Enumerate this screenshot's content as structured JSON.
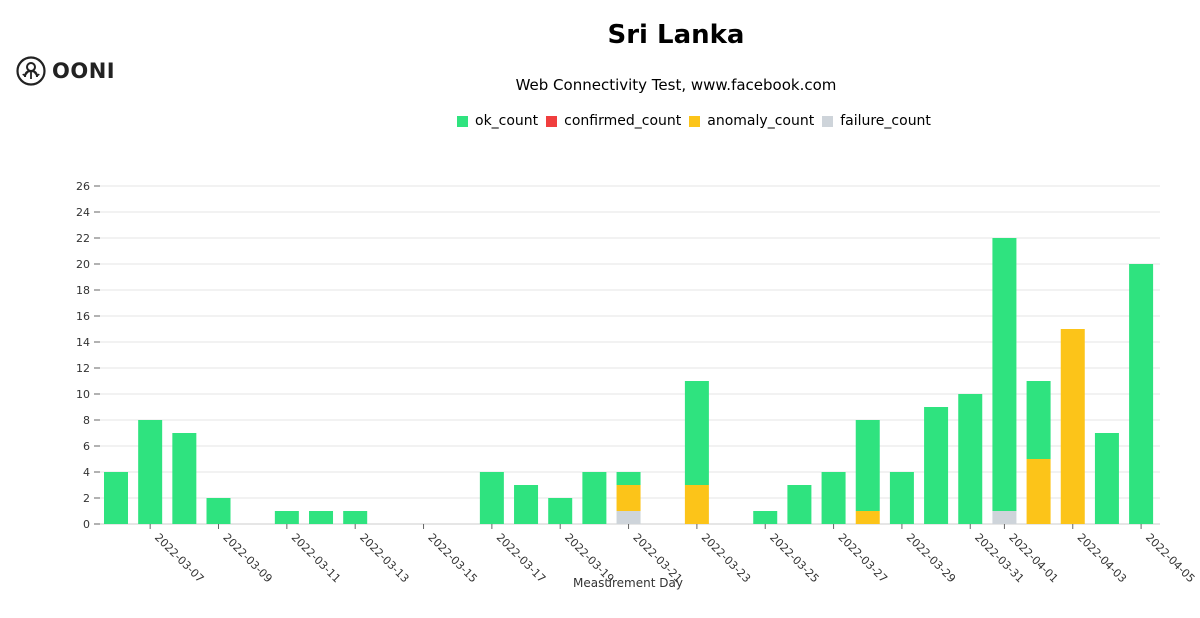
{
  "logo": {
    "text": "OONI"
  },
  "chart_data": {
    "type": "bar",
    "stacked": true,
    "title": "Sri Lanka",
    "subtitle": "Web Connectivity Test, www.facebook.com",
    "xlabel": "Measurement Day",
    "ylabel": "",
    "ylim": [
      0,
      26
    ],
    "yticks": [
      0,
      2,
      4,
      6,
      8,
      10,
      12,
      14,
      16,
      18,
      20,
      22,
      24,
      26
    ],
    "grid": true,
    "legend_position": "top-center",
    "categories": [
      "2022-03-06",
      "2022-03-07",
      "2022-03-08",
      "2022-03-09",
      "2022-03-10",
      "2022-03-11",
      "2022-03-12",
      "2022-03-13",
      "2022-03-14",
      "2022-03-15",
      "2022-03-16",
      "2022-03-17",
      "2022-03-18",
      "2022-03-19",
      "2022-03-20",
      "2022-03-21",
      "2022-03-22",
      "2022-03-23",
      "2022-03-24",
      "2022-03-25",
      "2022-03-26",
      "2022-03-27",
      "2022-03-28",
      "2022-03-29",
      "2022-03-30",
      "2022-03-31",
      "2022-04-01",
      "2022-04-02",
      "2022-04-03",
      "2022-04-04",
      "2022-04-05"
    ],
    "tick_labels": [
      "2022-03-07",
      "2022-03-09",
      "2022-03-11",
      "2022-03-13",
      "2022-03-15",
      "2022-03-17",
      "2022-03-19",
      "2022-03-21",
      "2022-03-23",
      "2022-03-25",
      "2022-03-27",
      "2022-03-29",
      "2022-03-31",
      "2022-04-01",
      "2022-04-03",
      "2022-04-05"
    ],
    "series": [
      {
        "name": "failure_count",
        "color": "#ced4da",
        "values": [
          0,
          0,
          0,
          0,
          0,
          0,
          0,
          0,
          0,
          0,
          0,
          0,
          0,
          0,
          0,
          1,
          0,
          0,
          0,
          0,
          0,
          0,
          0,
          0,
          0,
          0,
          1,
          0,
          0,
          0,
          0
        ]
      },
      {
        "name": "anomaly_count",
        "color": "#fcc419",
        "values": [
          0,
          0,
          0,
          0,
          0,
          0,
          0,
          0,
          0,
          0,
          0,
          0,
          0,
          0,
          0,
          2,
          0,
          3,
          0,
          0,
          0,
          0,
          1,
          0,
          0,
          0,
          0,
          5,
          15,
          0,
          0
        ]
      },
      {
        "name": "confirmed_count",
        "color": "#f03e3e",
        "values": [
          0,
          0,
          0,
          0,
          0,
          0,
          0,
          0,
          0,
          0,
          0,
          0,
          0,
          0,
          0,
          0,
          0,
          0,
          0,
          0,
          0,
          0,
          0,
          0,
          0,
          0,
          0,
          0,
          0,
          0,
          0
        ]
      },
      {
        "name": "ok_count",
        "color": "#2fe37f",
        "values": [
          4,
          8,
          7,
          2,
          0,
          1,
          1,
          1,
          0,
          0,
          0,
          4,
          3,
          2,
          4,
          1,
          0,
          8,
          0,
          1,
          3,
          4,
          7,
          4,
          9,
          10,
          21,
          6,
          0,
          7,
          20
        ]
      }
    ],
    "legend_order": [
      "ok_count",
      "confirmed_count",
      "anomaly_count",
      "failure_count"
    ],
    "stack_order": [
      "failure_count",
      "anomaly_count",
      "confirmed_count",
      "ok_count"
    ]
  }
}
